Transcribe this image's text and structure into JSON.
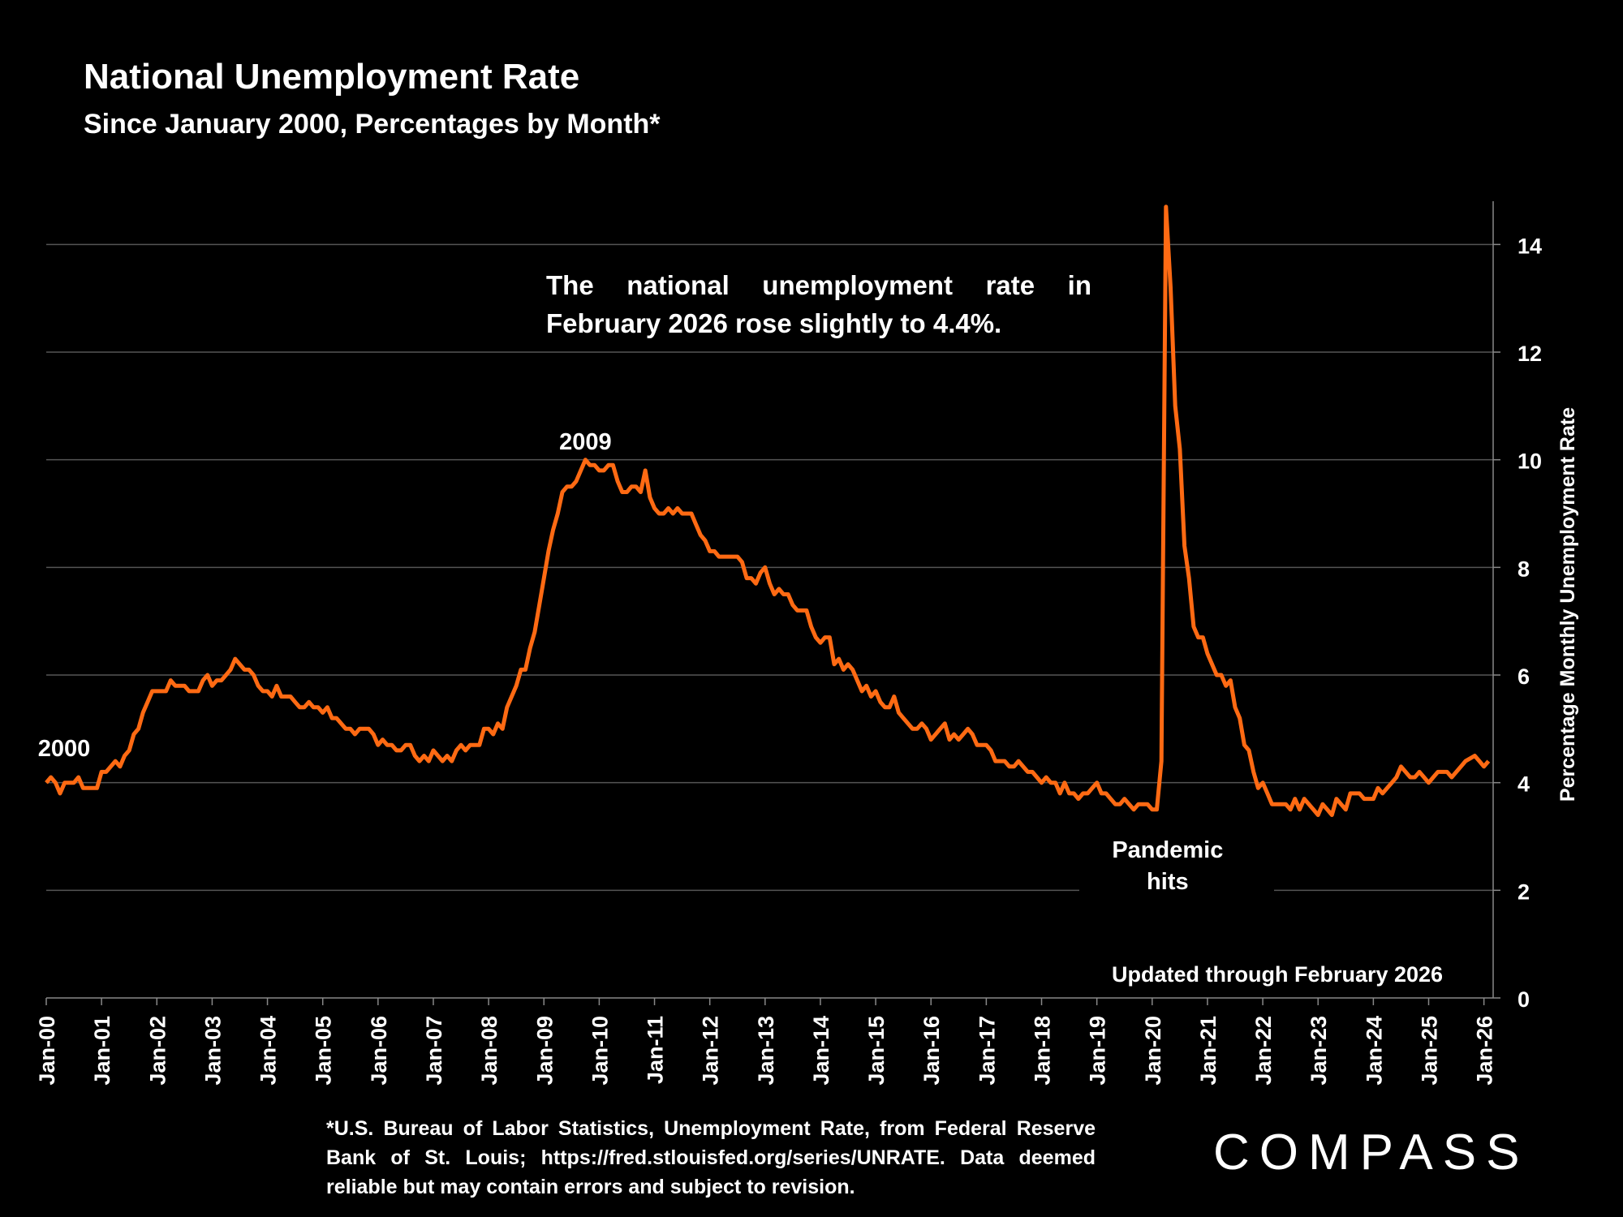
{
  "header": {
    "title": "National Unemployment Rate",
    "subtitle": "Since January 2000, Percentages by Month*"
  },
  "annotation": "The national unemployment rate in February 2026 rose slightly to 4.4%.",
  "updated": "Updated through February 2026",
  "footnote": "*U.S. Bureau of Labor Statistics, Unemployment Rate, from Federal Reserve Bank of St. Louis; https://fred.stlouisfed.org/series/UNRATE. Data deemed reliable but may contain errors and subject to revision.",
  "logo": "COMPASS",
  "colors": {
    "line": "#ff6a13",
    "background": "#000000",
    "grid": "#555555",
    "text": "#ffffff"
  },
  "chart_data": {
    "type": "line",
    "title": "National Unemployment Rate",
    "xlabel": "",
    "ylabel": "Percentage Monthly Unemployment Rate",
    "ylim": [
      0,
      15
    ],
    "yticks": [
      0,
      2,
      4,
      6,
      8,
      10,
      12,
      14
    ],
    "grid": true,
    "start": "Jan-2000",
    "frequency": "monthly",
    "xticks": [
      "Jan-00",
      "Jan-01",
      "Jan-02",
      "Jan-03",
      "Jan-04",
      "Jan-05",
      "Jan-06",
      "Jan-07",
      "Jan-08",
      "Jan-09",
      "Jan-10",
      "Jan-11",
      "Jan-12",
      "Jan-13",
      "Jan-14",
      "Jan-15",
      "Jan-16",
      "Jan-17",
      "Jan-18",
      "Jan-19",
      "Jan-20",
      "Jan-21",
      "Jan-22",
      "Jan-23",
      "Jan-24",
      "Jan-25",
      "Jan-26"
    ],
    "annotations": [
      {
        "label": "2000",
        "month_index": 0
      },
      {
        "label": "2009",
        "month_index": 117
      },
      {
        "label": "Pandemic hits",
        "month_index": 243
      }
    ],
    "series": [
      {
        "name": "Unemployment Rate",
        "values": [
          4.0,
          4.1,
          4.0,
          3.8,
          4.0,
          4.0,
          4.0,
          4.1,
          3.9,
          3.9,
          3.9,
          3.9,
          4.2,
          4.2,
          4.3,
          4.4,
          4.3,
          4.5,
          4.6,
          4.9,
          5.0,
          5.3,
          5.5,
          5.7,
          5.7,
          5.7,
          5.7,
          5.9,
          5.8,
          5.8,
          5.8,
          5.7,
          5.7,
          5.7,
          5.9,
          6.0,
          5.8,
          5.9,
          5.9,
          6.0,
          6.1,
          6.3,
          6.2,
          6.1,
          6.1,
          6.0,
          5.8,
          5.7,
          5.7,
          5.6,
          5.8,
          5.6,
          5.6,
          5.6,
          5.5,
          5.4,
          5.4,
          5.5,
          5.4,
          5.4,
          5.3,
          5.4,
          5.2,
          5.2,
          5.1,
          5.0,
          5.0,
          4.9,
          5.0,
          5.0,
          5.0,
          4.9,
          4.7,
          4.8,
          4.7,
          4.7,
          4.6,
          4.6,
          4.7,
          4.7,
          4.5,
          4.4,
          4.5,
          4.4,
          4.6,
          4.5,
          4.4,
          4.5,
          4.4,
          4.6,
          4.7,
          4.6,
          4.7,
          4.7,
          4.7,
          5.0,
          5.0,
          4.9,
          5.1,
          5.0,
          5.4,
          5.6,
          5.8,
          6.1,
          6.1,
          6.5,
          6.8,
          7.3,
          7.8,
          8.3,
          8.7,
          9.0,
          9.4,
          9.5,
          9.5,
          9.6,
          9.8,
          10.0,
          9.9,
          9.9,
          9.8,
          9.8,
          9.9,
          9.9,
          9.6,
          9.4,
          9.4,
          9.5,
          9.5,
          9.4,
          9.8,
          9.3,
          9.1,
          9.0,
          9.0,
          9.1,
          9.0,
          9.1,
          9.0,
          9.0,
          9.0,
          8.8,
          8.6,
          8.5,
          8.3,
          8.3,
          8.2,
          8.2,
          8.2,
          8.2,
          8.2,
          8.1,
          7.8,
          7.8,
          7.7,
          7.9,
          8.0,
          7.7,
          7.5,
          7.6,
          7.5,
          7.5,
          7.3,
          7.2,
          7.2,
          7.2,
          6.9,
          6.7,
          6.6,
          6.7,
          6.7,
          6.2,
          6.3,
          6.1,
          6.2,
          6.1,
          5.9,
          5.7,
          5.8,
          5.6,
          5.7,
          5.5,
          5.4,
          5.4,
          5.6,
          5.3,
          5.2,
          5.1,
          5.0,
          5.0,
          5.1,
          5.0,
          4.8,
          4.9,
          5.0,
          5.1,
          4.8,
          4.9,
          4.8,
          4.9,
          5.0,
          4.9,
          4.7,
          4.7,
          4.7,
          4.6,
          4.4,
          4.4,
          4.4,
          4.3,
          4.3,
          4.4,
          4.3,
          4.2,
          4.2,
          4.1,
          4.0,
          4.1,
          4.0,
          4.0,
          3.8,
          4.0,
          3.8,
          3.8,
          3.7,
          3.8,
          3.8,
          3.9,
          4.0,
          3.8,
          3.8,
          3.7,
          3.6,
          3.6,
          3.7,
          3.6,
          3.5,
          3.6,
          3.6,
          3.6,
          3.5,
          3.5,
          4.4,
          14.7,
          13.2,
          11.0,
          10.2,
          8.4,
          7.8,
          6.9,
          6.7,
          6.7,
          6.4,
          6.2,
          6.0,
          6.0,
          5.8,
          5.9,
          5.4,
          5.2,
          4.7,
          4.6,
          4.2,
          3.9,
          4.0,
          3.8,
          3.6,
          3.6,
          3.6,
          3.6,
          3.5,
          3.7,
          3.5,
          3.7,
          3.6,
          3.5,
          3.4,
          3.6,
          3.5,
          3.4,
          3.7,
          3.6,
          3.5,
          3.8,
          3.8,
          3.8,
          3.7,
          3.7,
          3.7,
          3.9,
          3.8,
          3.9,
          4.0,
          4.1,
          4.3,
          4.2,
          4.1,
          4.1,
          4.2,
          4.1,
          4.0,
          4.1,
          4.2,
          4.2,
          4.2,
          4.1,
          4.2,
          4.3,
          4.4,
          4.45,
          4.5,
          4.4,
          4.3,
          4.4
        ]
      }
    ]
  }
}
